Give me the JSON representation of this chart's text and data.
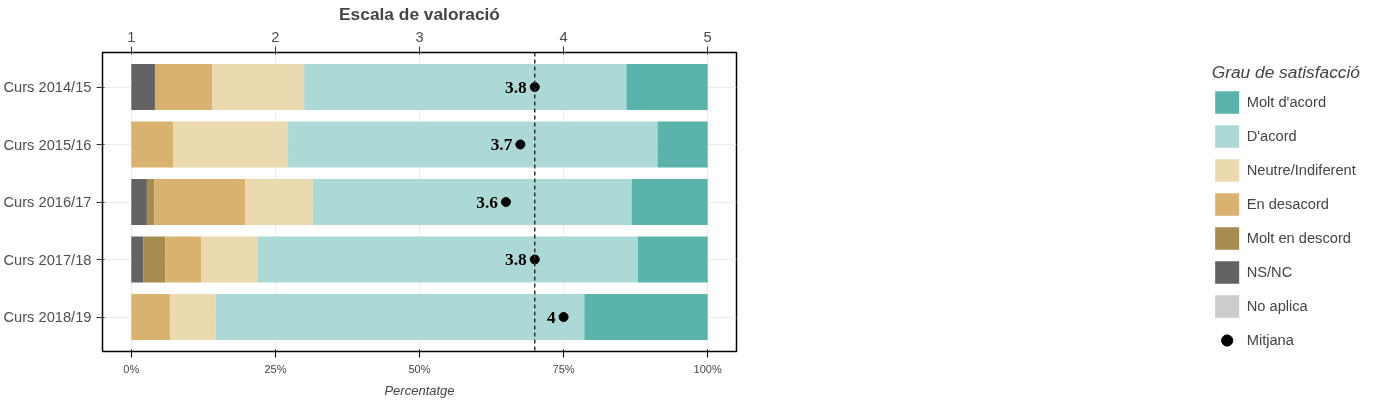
{
  "chart_data": {
    "type": "bar",
    "orientation": "horizontal",
    "stacked": true,
    "x2label": "Escala de valoració",
    "xlabel": "Percentatge",
    "legend_title": "Grau de satisfacció",
    "categories": [
      "Curs 2014/15",
      "Curs 2015/16",
      "Curs 2016/17",
      "Curs 2017/18",
      "Curs 2018/19"
    ],
    "series": [
      {
        "name": "No aplica",
        "color": "#cccccc",
        "values": [
          0,
          0,
          0,
          0,
          0
        ]
      },
      {
        "name": "NS/NC",
        "color": "#636363",
        "values": [
          4.1,
          0,
          2.7,
          2.1,
          0
        ]
      },
      {
        "name": "Molt en descord",
        "color": "#a88b4e",
        "values": [
          0,
          0,
          1.3,
          3.8,
          0
        ]
      },
      {
        "name": "En desacord",
        "color": "#d8b26e",
        "values": [
          9.9,
          7.3,
          15.8,
          6.2,
          6.7
        ]
      },
      {
        "name": "Neutre/Indiferent",
        "color": "#ebd9b0",
        "values": [
          16.0,
          19.9,
          11.7,
          9.8,
          7.9
        ]
      },
      {
        "name": "D'acord",
        "color": "#acd9d5",
        "values": [
          55.9,
          64.1,
          55.3,
          66.0,
          64.0
        ]
      },
      {
        "name": "Molt d'acord",
        "color": "#5ab4ac",
        "values": [
          14.1,
          8.7,
          13.2,
          12.1,
          21.4
        ]
      },
      {
        "name": "Mitjana",
        "type": "scatter",
        "axis": "x2",
        "color": "#000000",
        "marker": "circle",
        "values": [
          3.8,
          3.7,
          3.6,
          3.8,
          4
        ],
        "value_labels": [
          "3.8",
          "3.7",
          "3.6",
          "3.8",
          "4"
        ]
      }
    ],
    "xlim": [
      -5,
      105
    ],
    "xticks": [
      {
        "value": 0,
        "label": "0%"
      },
      {
        "value": 25,
        "label": "25%"
      },
      {
        "value": 50,
        "label": "50%"
      },
      {
        "value": 75,
        "label": "75%"
      },
      {
        "value": 100,
        "label": "100%"
      }
    ],
    "x2lim": [
      0.8,
      5.2
    ],
    "x2ticks": [
      1,
      2,
      3,
      4,
      5
    ],
    "ref_lines": [
      {
        "axis": "x2",
        "value": 3.8,
        "color": "#333333",
        "line_style": "dashed"
      }
    ],
    "grid": true,
    "legend": "right"
  }
}
